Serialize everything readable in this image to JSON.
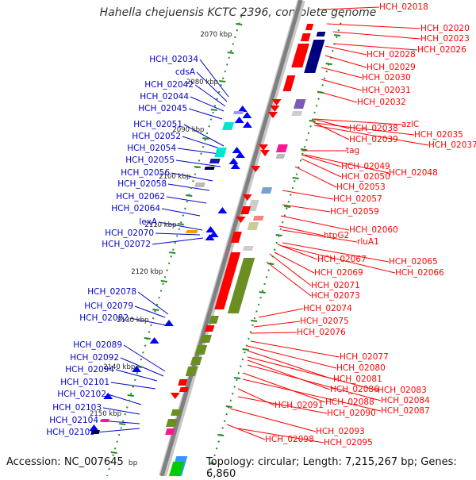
{
  "title": "Hahella chejuensis KCTC 2396, complete genome",
  "footer": {
    "accession": "Accession: NC_007645",
    "accession_tail": "bp",
    "topology": "Topology: circular; Length: 7,215,267 bp; Genes: 6,860"
  },
  "kbp_ticks": [
    "2070 kbp",
    "2080 kbp",
    "2090 kbp",
    "2100 kbp",
    "2110 kbp",
    "2120 kbp",
    "2130 kbp",
    "2140 kbp",
    "2150 kbp"
  ],
  "forward_labels": [
    "HCH_02018",
    "HCH_02020",
    "HCH_02023",
    "HCH_02026",
    "HCH_02028",
    "HCH_02029",
    "HCH_02030",
    "HCH_02031",
    "HCH_02032",
    "azlC",
    "HCH_02035",
    "HCH_02037",
    "HCH_02038",
    "HCH_02039",
    "tag",
    "HCH_02049",
    "HCH_02048",
    "HCH_02050",
    "HCH_02053",
    "HCH_02057",
    "HCH_02059",
    "HCH_02060",
    "rluA1",
    "htpG2",
    "HCH_02065",
    "HCH_02067",
    "HCH_02066",
    "HCH_02069",
    "HCH_02071",
    "HCH_02073",
    "HCH_02074",
    "HCH_02075",
    "HCH_02076",
    "HCH_02077",
    "HCH_02080",
    "HCH_02081",
    "HCH_02083",
    "HCH_02086",
    "HCH_02084",
    "HCH_02088",
    "HCH_02087",
    "HCH_02091",
    "HCH_02090",
    "HCH_02093",
    "HCH_02098",
    "HCH_02095"
  ],
  "reverse_labels": [
    "HCH_02034",
    "cdsA",
    "HCH_02042",
    "HCH_02044",
    "HCH_02045",
    "HCH_02051",
    "HCH_02052",
    "HCH_02054",
    "HCH_02055",
    "HCH_02056",
    "HCH_02058",
    "HCH_02062",
    "HCH_02064",
    "lexA",
    "HCH_02070",
    "HCH_02072",
    "HCH_02078",
    "HCH_02079",
    "HCH_02082",
    "HCH_02089",
    "HCH_02092",
    "HCH_02094",
    "HCH_02101",
    "HCH_02102",
    "HCH_02103",
    "HCH_02104",
    "HCH_02105"
  ],
  "colors": {
    "forward_gene": "#ff0000",
    "forward_label": "#ff0000",
    "reverse_gene": "#0000ff",
    "reverse_label": "#0000cc",
    "backbone": "#999999",
    "rRNA_olive": "#6b8e23",
    "navy_gene": "#000080",
    "cyan_gene": "#00e5d0",
    "magenta_gene": "#ff1493",
    "green_gene": "#00cc00",
    "tick_green": "#228b22"
  }
}
